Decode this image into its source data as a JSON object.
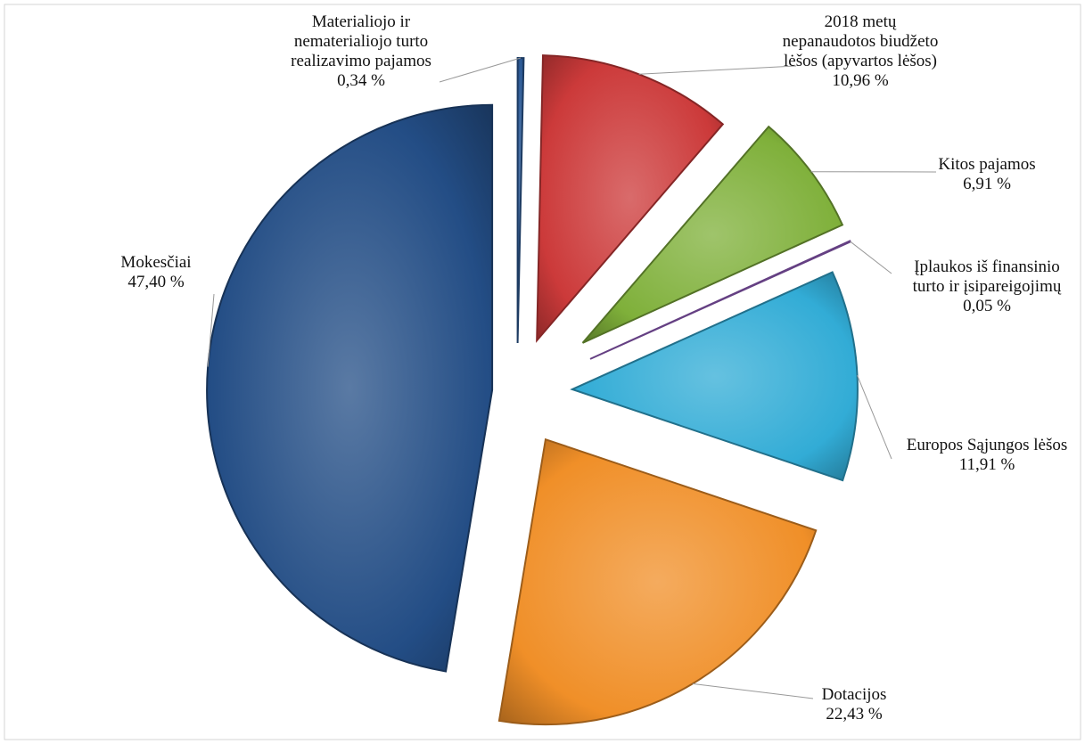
{
  "chart_data": {
    "type": "pie",
    "title": "",
    "slices": [
      {
        "label": [
          "Materialiojo ir",
          "nematerialiojo turto",
          "realizavimo pajamos"
        ],
        "value_label": "0,34 %",
        "value": 0.34,
        "color": "#2c5a96"
      },
      {
        "label": [
          "2018 metų",
          "nepanaudotos biudžeto",
          "lėšos (apyvartos lėšos)"
        ],
        "value_label": "10,96 %",
        "value": 10.96,
        "color": "#cc3a3a"
      },
      {
        "label": [
          "Kitos pajamos"
        ],
        "value_label": "6,91 %",
        "value": 6.91,
        "color": "#7fb03a"
      },
      {
        "label": [
          "Įplaukos iš finansinio",
          "turto ir įsipareigojimų"
        ],
        "value_label": "0,05 %",
        "value": 0.05,
        "color": "#9b62c9"
      },
      {
        "label": [
          "Europos Sąjungos lėšos"
        ],
        "value_label": "11,91 %",
        "value": 11.91,
        "color": "#32acd6"
      },
      {
        "label": [
          "Dotacijos"
        ],
        "value_label": "22,43 %",
        "value": 22.43,
        "color": "#f08f28"
      },
      {
        "label": [
          "Mokesčiai"
        ],
        "value_label": "47,40 %",
        "value": 47.4,
        "color": "#234d85"
      }
    ],
    "legend": "none",
    "exploded": true
  }
}
